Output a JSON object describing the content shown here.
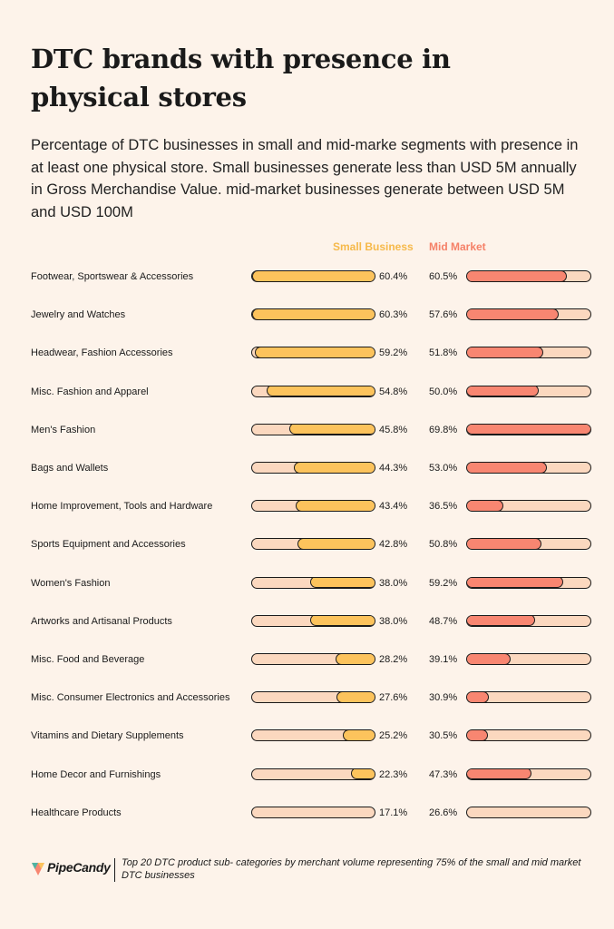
{
  "chart_data": {
    "type": "bar",
    "title": "DTC brands with presence in physical stores",
    "subtitle": "Percentage of DTC businesses in small and mid-marke segments with presence in at least one physical store. Small businesses generate less than USD 5M annually in Gross Merchandise Value. mid-market businesses generate between USD 5M and USD 100M",
    "categories": [
      "Footwear, Sportswear & Accessories",
      "Jewelry and Watches",
      "Headwear, Fashion Accessories",
      "Misc. Fashion and Apparel",
      "Men's Fashion",
      "Bags and Wallets",
      "Home Improvement, Tools and Hardware",
      "Sports Equipment and Accessories",
      "Women's Fashion",
      "Artworks and Artisanal Products",
      "Misc. Food and Beverage",
      "Misc. Consumer Electronics and Accessories",
      "Vitamins and Dietary Supplements",
      "Home Decor and Furnishings",
      "Healthcare Products"
    ],
    "series": [
      {
        "name": "Small Business",
        "color": "#fcc35c",
        "values": [
          60.4,
          60.3,
          59.2,
          54.8,
          45.8,
          44.3,
          43.4,
          42.8,
          38.0,
          38.0,
          28.2,
          27.6,
          25.2,
          22.3,
          17.1
        ],
        "labels": [
          "60.4%",
          "60.3%",
          "59.2%",
          "54.8%",
          "45.8%",
          "44.3%",
          "43.4%",
          "42.8%",
          "38.0%",
          "38.0%",
          "28.2%",
          "27.6%",
          "25.2%",
          "22.3%",
          "17.1%"
        ]
      },
      {
        "name": "Mid Market",
        "color": "#f88671",
        "values": [
          60.5,
          57.6,
          51.8,
          50.0,
          69.8,
          53.0,
          36.5,
          50.8,
          59.2,
          48.7,
          39.1,
          30.9,
          30.5,
          47.3,
          26.6
        ],
        "labels": [
          "60.5%",
          "57.6%",
          "51.8%",
          "50.0%",
          "69.8%",
          "53.0%",
          "36.5%",
          "50.8%",
          "59.2%",
          "48.7%",
          "39.1%",
          "30.9%",
          "30.5%",
          "47.3%",
          "26.6%"
        ]
      }
    ],
    "small_scale": [
      17.1,
      60.4
    ],
    "mid_scale": [
      26.6,
      69.8
    ],
    "legend": "top"
  },
  "colors": {
    "background": "#fdf3ea",
    "track": "#fbd8bf",
    "small_legend": "#f6b94a",
    "mid_legend": "#f58168"
  },
  "footer": {
    "logo_text": "PipeCandy",
    "note": "Top 20 DTC product sub- categories by merchant volume representing 75% of the small and mid market DTC businesses"
  }
}
